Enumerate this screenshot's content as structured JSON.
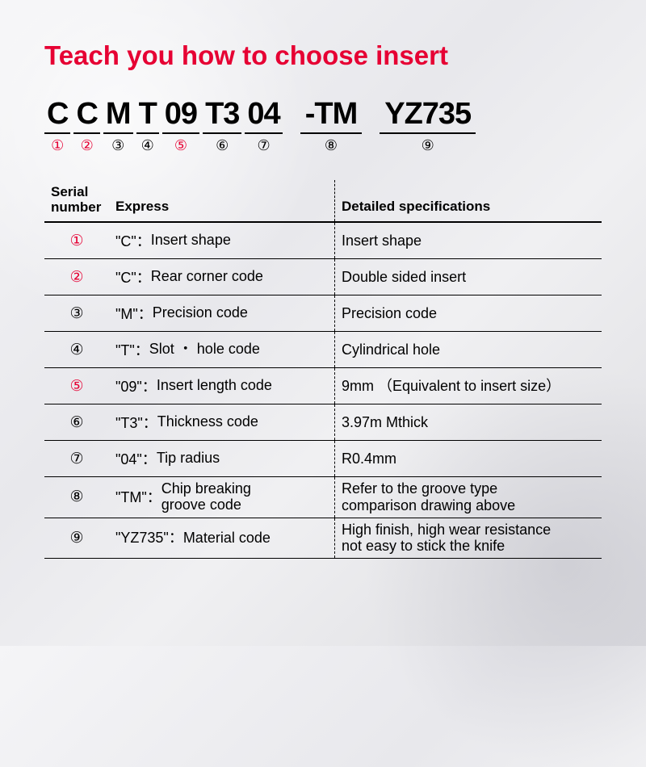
{
  "title": "Teach you how to choose insert",
  "title_color": "#e60033",
  "accent_color": "#e60033",
  "code_segments": [
    {
      "text": "C",
      "num": "①",
      "accent": true
    },
    {
      "text": "C",
      "num": "②",
      "accent": true
    },
    {
      "text": "M",
      "num": "③",
      "accent": false
    },
    {
      "text": "T",
      "num": "④",
      "accent": false
    },
    {
      "text": "09",
      "num": "⑤",
      "accent": true
    },
    {
      "text": "T3",
      "num": "⑥",
      "accent": false
    },
    {
      "text": "04",
      "num": "⑦",
      "accent": false
    },
    {
      "text": "-TM",
      "num": "⑧",
      "accent": false
    },
    {
      "text": "YZ735",
      "num": "⑨",
      "accent": false
    }
  ],
  "headers": {
    "serial": "Serial\nnumber",
    "express": "Express",
    "detail": "Detailed specifications"
  },
  "rows": [
    {
      "num": "①",
      "accent": true,
      "code": "\"C\"",
      "label": "Insert shape",
      "detail": "Insert shape"
    },
    {
      "num": "②",
      "accent": true,
      "code": "\"C\"",
      "label": "Rear corner code",
      "detail": "Double sided insert"
    },
    {
      "num": "③",
      "accent": false,
      "code": "\"M\"",
      "label": "Precision code",
      "detail": "Precision code"
    },
    {
      "num": "④",
      "accent": false,
      "code": "\"T\"",
      "label": "Slot ・ hole code",
      "detail": "Cylindrical hole"
    },
    {
      "num": "⑤",
      "accent": true,
      "code": "\"09\"",
      "label": "Insert length code",
      "detail": "9mm （Equivalent to insert size）"
    },
    {
      "num": "⑥",
      "accent": false,
      "code": "\"T3\"",
      "label": "Thickness code",
      "detail": "3.97m  Mthick"
    },
    {
      "num": "⑦",
      "accent": false,
      "code": "\"04\"",
      "label": "Tip radius",
      "detail": "R0.4mm"
    },
    {
      "num": "⑧",
      "accent": false,
      "code": "\"TM\"",
      "label": "Chip breaking\ngroove code",
      "detail": "Refer to the groove type\ncomparison drawing above",
      "multi": true
    },
    {
      "num": "⑨",
      "accent": false,
      "code": "\"YZ735\"",
      "label": "Material code",
      "detail": "High finish, high wear resistance\nnot easy to stick the knife",
      "multi": true
    }
  ]
}
